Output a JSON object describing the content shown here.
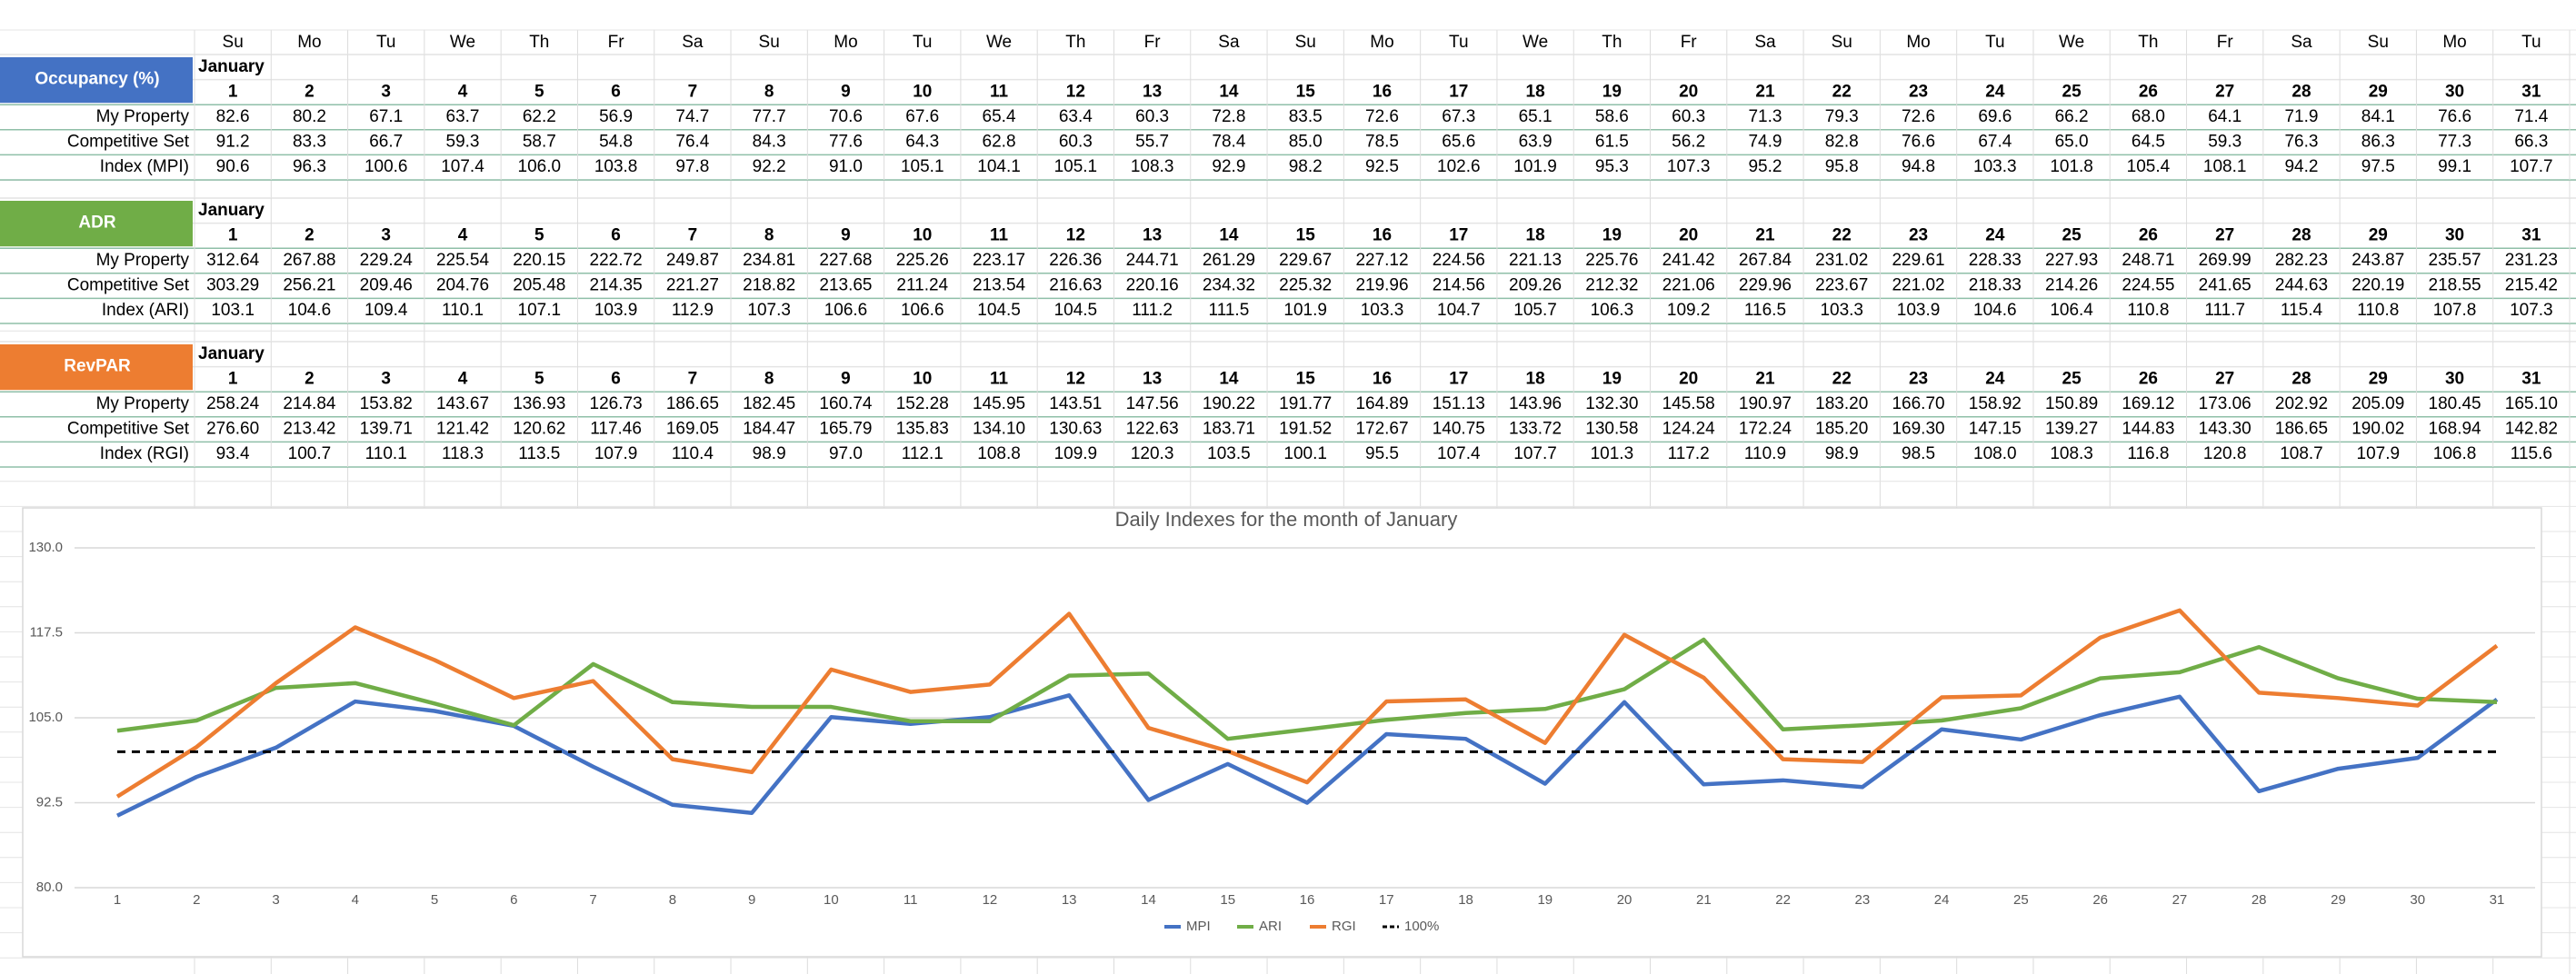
{
  "weekdays": [
    "Su",
    "Mo",
    "Tu",
    "We",
    "Th",
    "Fr",
    "Sa",
    "Su",
    "Mo",
    "Tu",
    "We",
    "Th",
    "Fr",
    "Sa",
    "Su",
    "Mo",
    "Tu",
    "We",
    "Th",
    "Fr",
    "Sa",
    "Su",
    "Mo",
    "Tu",
    "We",
    "Th",
    "Fr",
    "Sa",
    "Su",
    "Mo",
    "Tu"
  ],
  "sections": [
    {
      "label": "Occupancy (%)",
      "month": "January",
      "days": [
        1,
        2,
        3,
        4,
        5,
        6,
        7,
        8,
        9,
        10,
        11,
        12,
        13,
        14,
        15,
        16,
        17,
        18,
        19,
        20,
        21,
        22,
        23,
        24,
        25,
        26,
        27,
        28,
        29,
        30,
        31
      ],
      "rows": [
        {
          "label": "My Property",
          "values": [
            "82.6",
            "80.2",
            "67.1",
            "63.7",
            "62.2",
            "56.9",
            "74.7",
            "77.7",
            "70.6",
            "67.6",
            "65.4",
            "63.4",
            "60.3",
            "72.8",
            "83.5",
            "72.6",
            "67.3",
            "65.1",
            "58.6",
            "60.3",
            "71.3",
            "79.3",
            "72.6",
            "69.6",
            "66.2",
            "68.0",
            "64.1",
            "71.9",
            "84.1",
            "76.6",
            "71.4"
          ]
        },
        {
          "label": "Competitive Set",
          "values": [
            "91.2",
            "83.3",
            "66.7",
            "59.3",
            "58.7",
            "54.8",
            "76.4",
            "84.3",
            "77.6",
            "64.3",
            "62.8",
            "60.3",
            "55.7",
            "78.4",
            "85.0",
            "78.5",
            "65.6",
            "63.9",
            "61.5",
            "56.2",
            "74.9",
            "82.8",
            "76.6",
            "67.4",
            "65.0",
            "64.5",
            "59.3",
            "76.3",
            "86.3",
            "77.3",
            "66.3"
          ]
        },
        {
          "label": "Index (MPI)",
          "values": [
            "90.6",
            "96.3",
            "100.6",
            "107.4",
            "106.0",
            "103.8",
            "97.8",
            "92.2",
            "91.0",
            "105.1",
            "104.1",
            "105.1",
            "108.3",
            "92.9",
            "98.2",
            "92.5",
            "102.6",
            "101.9",
            "95.3",
            "107.3",
            "95.2",
            "95.8",
            "94.8",
            "103.3",
            "101.8",
            "105.4",
            "108.1",
            "94.2",
            "97.5",
            "99.1",
            "107.7"
          ]
        }
      ]
    },
    {
      "label": "ADR",
      "month": "January",
      "days": [
        1,
        2,
        3,
        4,
        5,
        6,
        7,
        8,
        9,
        10,
        11,
        12,
        13,
        14,
        15,
        16,
        17,
        18,
        19,
        20,
        21,
        22,
        23,
        24,
        25,
        26,
        27,
        28,
        29,
        30,
        31
      ],
      "rows": [
        {
          "label": "My Property",
          "values": [
            "312.64",
            "267.88",
            "229.24",
            "225.54",
            "220.15",
            "222.72",
            "249.87",
            "234.81",
            "227.68",
            "225.26",
            "223.17",
            "226.36",
            "244.71",
            "261.29",
            "229.67",
            "227.12",
            "224.56",
            "221.13",
            "225.76",
            "241.42",
            "267.84",
            "231.02",
            "229.61",
            "228.33",
            "227.93",
            "248.71",
            "269.99",
            "282.23",
            "243.87",
            "235.57",
            "231.23"
          ]
        },
        {
          "label": "Competitive Set",
          "values": [
            "303.29",
            "256.21",
            "209.46",
            "204.76",
            "205.48",
            "214.35",
            "221.27",
            "218.82",
            "213.65",
            "211.24",
            "213.54",
            "216.63",
            "220.16",
            "234.32",
            "225.32",
            "219.96",
            "214.56",
            "209.26",
            "212.32",
            "221.06",
            "229.96",
            "223.67",
            "221.02",
            "218.33",
            "214.26",
            "224.55",
            "241.65",
            "244.63",
            "220.19",
            "218.55",
            "215.42"
          ]
        },
        {
          "label": "Index (ARI)",
          "values": [
            "103.1",
            "104.6",
            "109.4",
            "110.1",
            "107.1",
            "103.9",
            "112.9",
            "107.3",
            "106.6",
            "106.6",
            "104.5",
            "104.5",
            "111.2",
            "111.5",
            "101.9",
            "103.3",
            "104.7",
            "105.7",
            "106.3",
            "109.2",
            "116.5",
            "103.3",
            "103.9",
            "104.6",
            "106.4",
            "110.8",
            "111.7",
            "115.4",
            "110.8",
            "107.8",
            "107.3"
          ]
        }
      ]
    },
    {
      "label": "RevPAR",
      "month": "January",
      "days": [
        1,
        2,
        3,
        4,
        5,
        6,
        7,
        8,
        9,
        10,
        11,
        12,
        13,
        14,
        15,
        16,
        17,
        18,
        19,
        20,
        21,
        22,
        23,
        24,
        25,
        26,
        27,
        28,
        29,
        30,
        31
      ],
      "rows": [
        {
          "label": "My Property",
          "values": [
            "258.24",
            "214.84",
            "153.82",
            "143.67",
            "136.93",
            "126.73",
            "186.65",
            "182.45",
            "160.74",
            "152.28",
            "145.95",
            "143.51",
            "147.56",
            "190.22",
            "191.77",
            "164.89",
            "151.13",
            "143.96",
            "132.30",
            "145.58",
            "190.97",
            "183.20",
            "166.70",
            "158.92",
            "150.89",
            "169.12",
            "173.06",
            "202.92",
            "205.09",
            "180.45",
            "165.10"
          ]
        },
        {
          "label": "Competitive Set",
          "values": [
            "276.60",
            "213.42",
            "139.71",
            "121.42",
            "120.62",
            "117.46",
            "169.05",
            "184.47",
            "165.79",
            "135.83",
            "134.10",
            "130.63",
            "122.63",
            "183.71",
            "191.52",
            "172.67",
            "140.75",
            "133.72",
            "130.58",
            "124.24",
            "172.24",
            "185.20",
            "169.30",
            "147.15",
            "139.27",
            "144.83",
            "143.30",
            "186.65",
            "190.02",
            "168.94",
            "142.82"
          ]
        },
        {
          "label": "Index (RGI)",
          "values": [
            "93.4",
            "100.7",
            "110.1",
            "118.3",
            "113.5",
            "107.9",
            "110.4",
            "98.9",
            "97.0",
            "112.1",
            "108.8",
            "109.9",
            "120.3",
            "103.5",
            "100.1",
            "95.5",
            "107.4",
            "107.7",
            "101.3",
            "117.2",
            "110.9",
            "98.9",
            "98.5",
            "108.0",
            "108.3",
            "116.8",
            "120.8",
            "108.7",
            "107.9",
            "106.8",
            "115.6"
          ]
        }
      ]
    }
  ],
  "chart_data": {
    "type": "line",
    "title": "Daily Indexes for the month of January",
    "x": [
      1,
      2,
      3,
      4,
      5,
      6,
      7,
      8,
      9,
      10,
      11,
      12,
      13,
      14,
      15,
      16,
      17,
      18,
      19,
      20,
      21,
      22,
      23,
      24,
      25,
      26,
      27,
      28,
      29,
      30,
      31
    ],
    "series": [
      {
        "name": "MPI",
        "color": "#4472c4",
        "values": [
          90.6,
          96.3,
          100.6,
          107.4,
          106,
          103.8,
          97.8,
          92.2,
          91,
          105.1,
          104.1,
          105.1,
          108.3,
          92.9,
          98.2,
          92.5,
          102.6,
          101.9,
          95.3,
          107.3,
          95.2,
          95.8,
          94.8,
          103.3,
          101.8,
          105.4,
          108.1,
          94.2,
          97.5,
          99.1,
          107.7
        ]
      },
      {
        "name": "ARI",
        "color": "#70ad47",
        "values": [
          103.1,
          104.6,
          109.4,
          110.1,
          107.1,
          103.9,
          112.9,
          107.3,
          106.6,
          106.6,
          104.5,
          104.5,
          111.2,
          111.5,
          101.9,
          103.3,
          104.7,
          105.7,
          106.3,
          109.2,
          116.5,
          103.3,
          103.9,
          104.6,
          106.4,
          110.8,
          111.7,
          115.4,
          110.8,
          107.8,
          107.3
        ]
      },
      {
        "name": "RGI",
        "color": "#ed7d31",
        "values": [
          93.4,
          100.7,
          110.1,
          118.3,
          113.5,
          107.9,
          110.4,
          98.9,
          97,
          112.1,
          108.8,
          109.9,
          120.3,
          103.5,
          100.1,
          95.5,
          107.4,
          107.7,
          101.3,
          117.2,
          110.9,
          98.9,
          98.5,
          108,
          108.3,
          116.8,
          120.8,
          108.7,
          107.9,
          106.8,
          115.6
        ]
      },
      {
        "name": "100%",
        "color": "#000000",
        "dashed": true,
        "values": [
          100,
          100,
          100,
          100,
          100,
          100,
          100,
          100,
          100,
          100,
          100,
          100,
          100,
          100,
          100,
          100,
          100,
          100,
          100,
          100,
          100,
          100,
          100,
          100,
          100,
          100,
          100,
          100,
          100,
          100,
          100
        ]
      }
    ],
    "ylim": [
      80,
      130
    ],
    "yticks": [
      {
        "value": 80,
        "label": "80.0"
      },
      {
        "value": 92.5,
        "label": "92.5"
      },
      {
        "value": 105,
        "label": "105.0"
      },
      {
        "value": 117.5,
        "label": "117.5"
      },
      {
        "value": 130,
        "label": "130.0"
      }
    ],
    "grid": true,
    "legend": "bottom"
  }
}
